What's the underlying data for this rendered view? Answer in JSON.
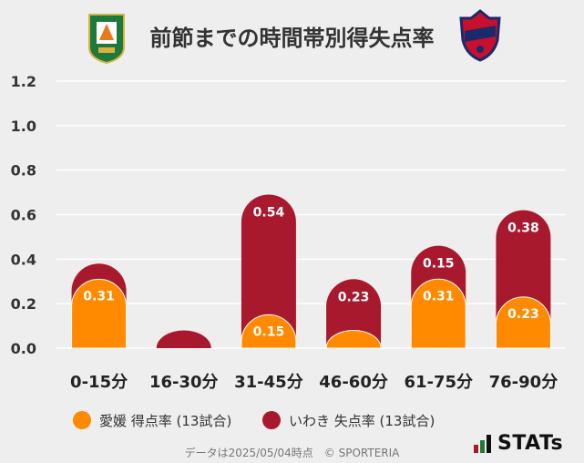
{
  "header": {
    "title": "前節までの時間帯別得失点率"
  },
  "colors": {
    "ehime": "#ff8a00",
    "iwaki": "#a8192e",
    "grid": "#ffffff",
    "background": "#eeeeee"
  },
  "legend": {
    "ehime_label": "愛媛 得点率 (13試合)",
    "iwaki_label": "いわき 失点率 (13試合)"
  },
  "footer": {
    "text": "データは2025/05/04時点　© SPORTERIA",
    "brand": "STATs"
  },
  "chart_data": {
    "type": "bar",
    "categories": [
      "0-15分",
      "16-30分",
      "31-45分",
      "46-60分",
      "61-75分",
      "76-90分"
    ],
    "ylim": [
      0,
      1.2
    ],
    "yticks": [
      "0.0",
      "0.2",
      "0.4",
      "0.6",
      "0.8",
      "1.0",
      "1.2"
    ],
    "grid": true,
    "legend_position": "bottom",
    "series": [
      {
        "name": "愛媛 得点率 (13試合)",
        "values": [
          0.31,
          0,
          0.15,
          0.08,
          0.31,
          0.23
        ],
        "labels": [
          "0.31",
          "",
          "0.15",
          "",
          "0.31",
          "0.23"
        ]
      },
      {
        "name": "いわき 失点率 (13試合)",
        "values": [
          0.38,
          0.08,
          0.69,
          0.31,
          0.46,
          0.62
        ],
        "labels": [
          "",
          "",
          "0.54",
          "0.23",
          "0.15",
          "0.38"
        ]
      }
    ]
  }
}
